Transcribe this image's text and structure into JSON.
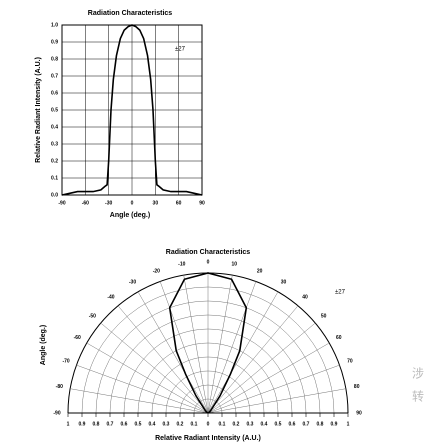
{
  "chart_data": [
    {
      "type": "line",
      "title": "Radiation Characteristics",
      "x_label": "Angle (deg.)",
      "y_label": "Relative Radiant Intensity (A.U.)",
      "annotation": "±27",
      "x": [
        -90,
        -80,
        -70,
        -60,
        -50,
        -40,
        -35,
        -32,
        -30,
        -27,
        -24,
        -20,
        -15,
        -10,
        -5,
        0,
        5,
        10,
        15,
        20,
        24,
        27,
        30,
        32,
        35,
        40,
        50,
        60,
        70,
        80,
        90
      ],
      "series": [
        {
          "color": "#000000",
          "values": [
            0,
            0.01,
            0.02,
            0.02,
            0.02,
            0.03,
            0.05,
            0.06,
            0.2,
            0.5,
            0.68,
            0.82,
            0.92,
            0.97,
            0.99,
            1.0,
            0.99,
            0.97,
            0.92,
            0.82,
            0.68,
            0.5,
            0.2,
            0.06,
            0.05,
            0.03,
            0.02,
            0.02,
            0.02,
            0.01,
            0
          ]
        }
      ],
      "xlim": [
        -90,
        90
      ],
      "xticks": [
        -90,
        -60,
        -30,
        0,
        30,
        60,
        90
      ],
      "ylim": [
        0,
        1
      ],
      "yticks": [
        {
          "value": 0,
          "label": "0.0"
        },
        0.1,
        0.2,
        0.3,
        0.4,
        0.5,
        0.6,
        0.7,
        0.8,
        0.9,
        {
          "value": 1,
          "label": "1.0"
        }
      ],
      "grid": true
    },
    {
      "type": "polar",
      "title": "Radiation Characteristics",
      "r_label": "Relative Radiant Intensity (A.U.)",
      "theta_label": "Angle (deg.)",
      "annotation": "±27",
      "theta": [
        -90,
        -60,
        -50,
        -45,
        -40,
        -35,
        -30,
        -27,
        -20,
        -10,
        0,
        10,
        20,
        27,
        30,
        35,
        40,
        45,
        50,
        60,
        90
      ],
      "series": [
        {
          "color": "#000000",
          "values": [
            0,
            0.01,
            0.02,
            0.03,
            0.05,
            0.15,
            0.32,
            0.5,
            0.8,
            0.97,
            1.0,
            0.97,
            0.8,
            0.5,
            0.32,
            0.15,
            0.05,
            0.03,
            0.02,
            0.01,
            0
          ]
        }
      ],
      "thetalim": [
        -90,
        90
      ],
      "thetaticks": [
        -90,
        -80,
        -70,
        -60,
        -50,
        -40,
        -30,
        -20,
        -10,
        0,
        10,
        20,
        30,
        40,
        50,
        60,
        70,
        80,
        90
      ],
      "rlim": [
        0,
        1
      ],
      "rticks": [
        0,
        0.1,
        0.2,
        0.3,
        0.4,
        0.5,
        0.6,
        0.7,
        0.8,
        0.9,
        1
      ],
      "grid": true
    }
  ],
  "watermark": [
    "涉",
    "转"
  ]
}
